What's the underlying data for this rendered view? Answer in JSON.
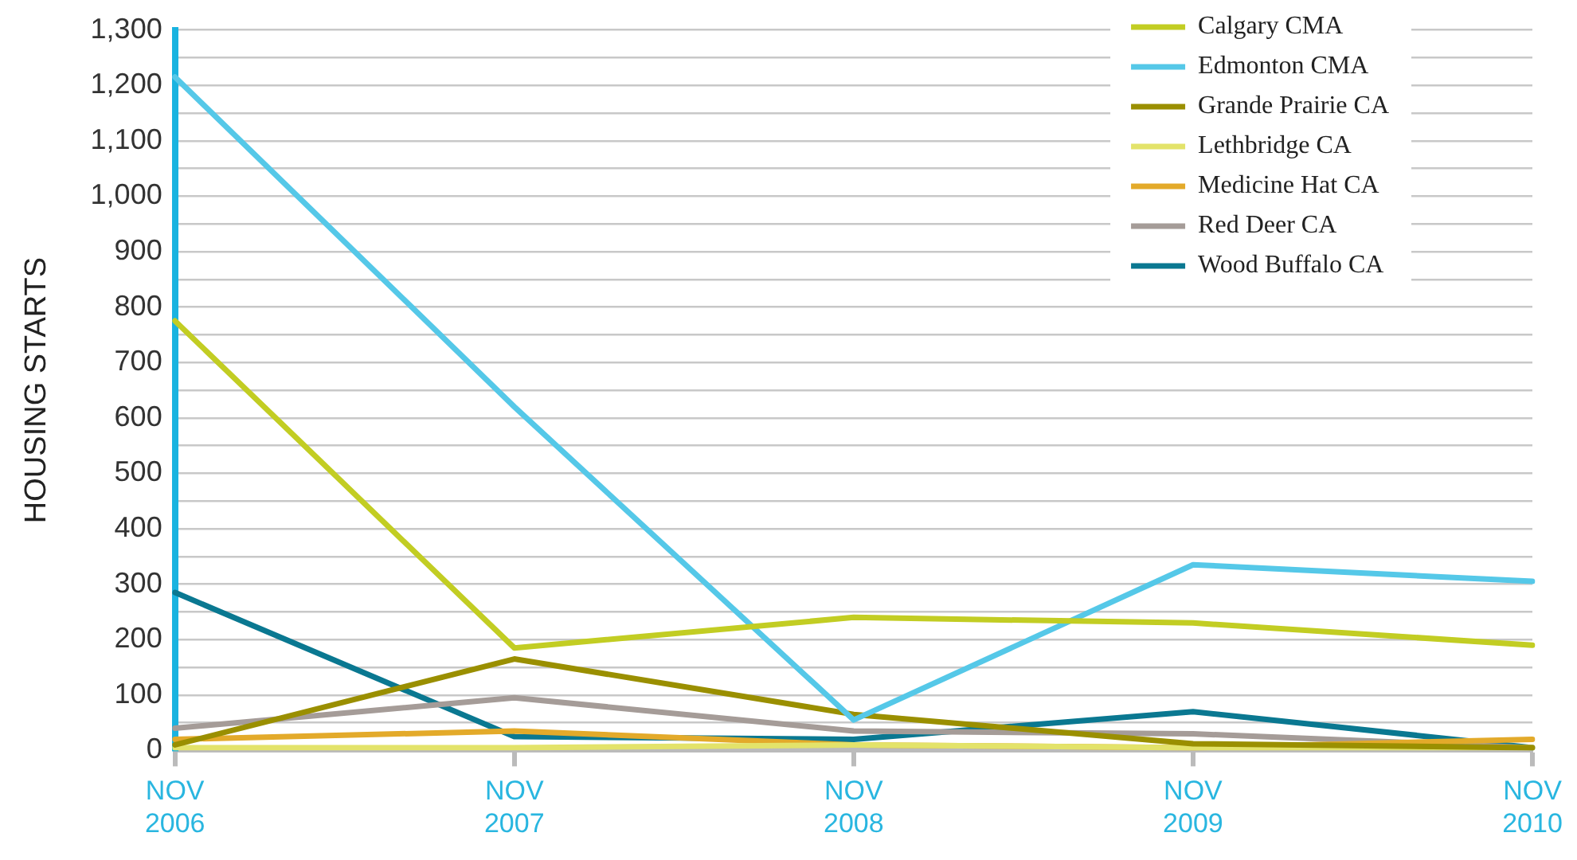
{
  "chart_data": {
    "type": "line",
    "ylabel": "HOUSING STARTS",
    "categories": [
      "NOV\n2006",
      "NOV\n2007",
      "NOV\n2008",
      "NOV\n2009",
      "NOV\n2010"
    ],
    "series": [
      {
        "name": "Calgary CMA",
        "color": "#c2cd23",
        "values": [
          775,
          185,
          240,
          230,
          190
        ]
      },
      {
        "name": "Edmonton CMA",
        "color": "#55c8e8",
        "values": [
          1215,
          620,
          55,
          335,
          305
        ]
      },
      {
        "name": "Grande Prairie CA",
        "color": "#9a8f00",
        "values": [
          10,
          165,
          65,
          12,
          5
        ]
      },
      {
        "name": "Lethbridge CA",
        "color": "#e3e36a",
        "values": [
          5,
          5,
          10,
          5,
          5
        ]
      },
      {
        "name": "Medicine Hat CA",
        "color": "#e3aa2a",
        "values": [
          20,
          35,
          10,
          5,
          20
        ]
      },
      {
        "name": "Red Deer CA",
        "color": "#a59c98",
        "values": [
          40,
          95,
          35,
          30,
          5
        ]
      },
      {
        "name": "Wood Buffalo CA",
        "color": "#0a7891",
        "values": [
          285,
          25,
          20,
          70,
          5
        ]
      }
    ],
    "ylim": [
      0,
      1300
    ],
    "yticks": [
      0,
      {
        "value": 50,
        "label": null
      },
      100,
      {
        "value": 150,
        "label": null
      },
      200,
      {
        "value": 250,
        "label": null
      },
      300,
      {
        "value": 350,
        "label": null
      },
      400,
      {
        "value": 450,
        "label": null
      },
      500,
      {
        "value": 550,
        "label": null
      },
      600,
      {
        "value": 650,
        "label": null
      },
      700,
      {
        "value": 750,
        "label": null
      },
      800,
      {
        "value": 850,
        "label": null
      },
      900,
      {
        "value": 950,
        "label": null
      },
      {
        "value": 1000,
        "label": "1,000"
      },
      {
        "value": 1050,
        "label": null
      },
      {
        "value": 1100,
        "label": "1,100"
      },
      {
        "value": 1150,
        "label": null
      },
      {
        "value": 1200,
        "label": "1,200"
      },
      {
        "value": 1250,
        "label": null
      },
      {
        "value": 1300,
        "label": "1,300"
      }
    ],
    "grid": "y",
    "legend": "top right",
    "marker": "none",
    "line_style": "solid"
  }
}
